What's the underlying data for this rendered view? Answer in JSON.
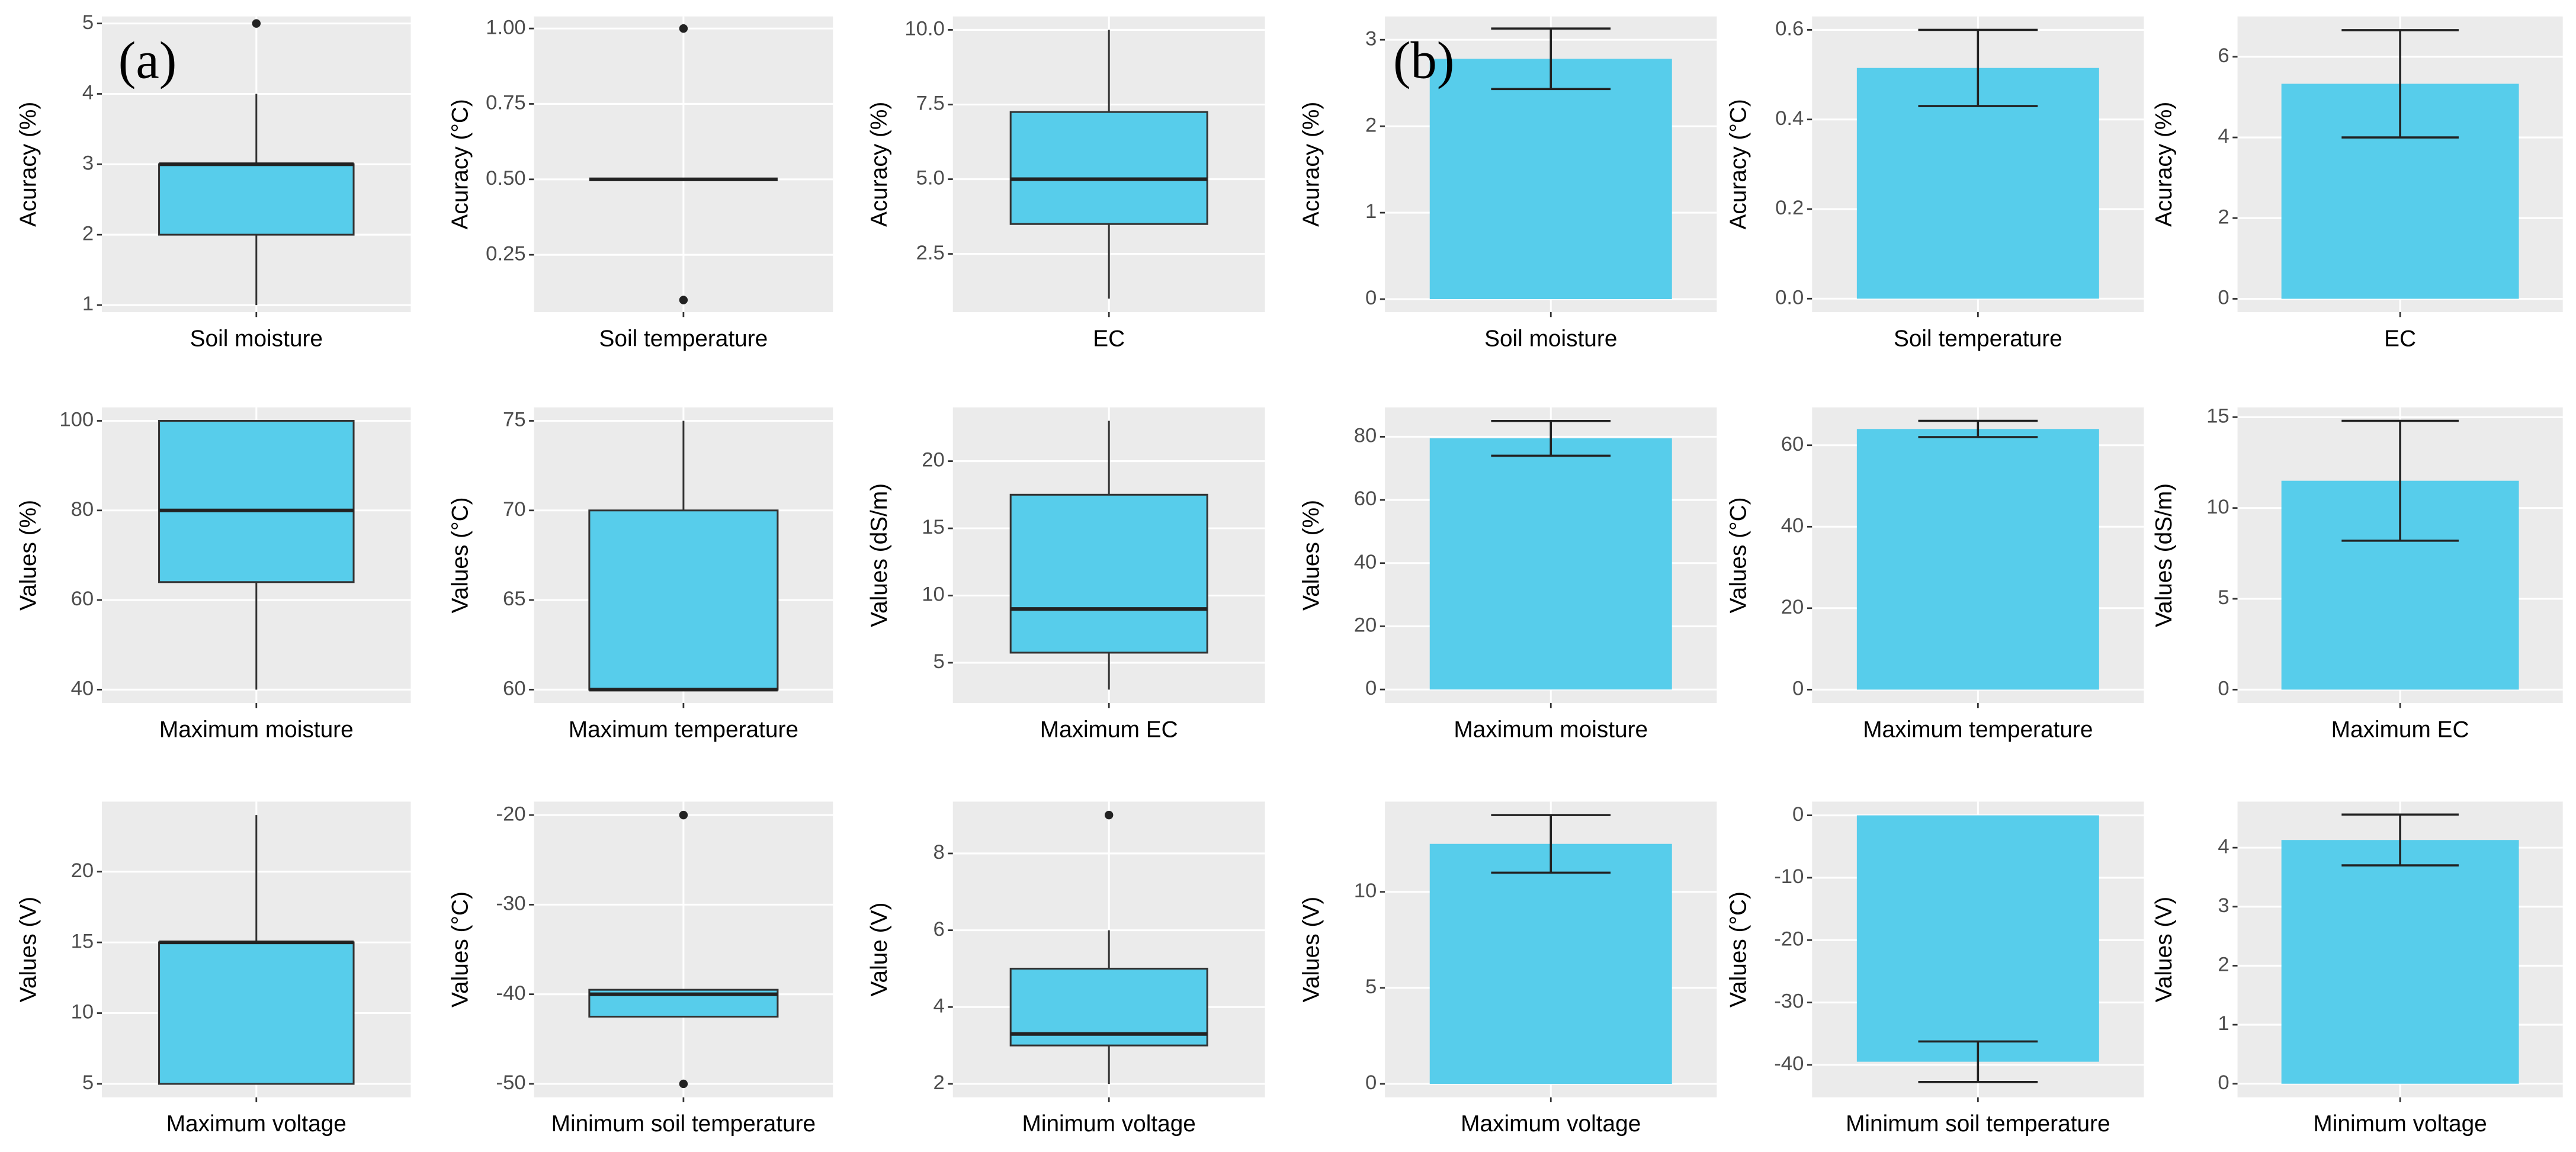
{
  "panel_labels": [
    "(a)",
    "(b)"
  ],
  "chart_data": [
    {
      "type": "box",
      "categories": [
        "Soil moisture"
      ],
      "ylabel": "Acuracy (%)",
      "color": "#57cdeb",
      "boxes": [
        {
          "min": 1,
          "q1": 2,
          "median": 3,
          "q3": 3,
          "max": 4,
          "outliers": [
            5
          ]
        }
      ],
      "ylim": [
        0.9,
        5.1
      ],
      "yticks": [
        1,
        2,
        3,
        4,
        5
      ]
    },
    {
      "type": "box",
      "categories": [
        "Soil temperature"
      ],
      "ylabel": "Acuracy (°C)",
      "color": "#57cdeb",
      "boxes": [
        {
          "min": 0.5,
          "q1": 0.5,
          "median": 0.5,
          "q3": 0.5,
          "max": 0.5,
          "outliers": [
            0.1,
            1
          ]
        }
      ],
      "ylim": [
        0.06,
        1.04
      ],
      "yticks": [
        {
          "value": 0.25,
          "label": "0.25"
        },
        {
          "value": 0.5,
          "label": "0.50"
        },
        {
          "value": 0.75,
          "label": "0.75"
        },
        {
          "value": 1,
          "label": "1.00"
        }
      ]
    },
    {
      "type": "box",
      "categories": [
        "EC"
      ],
      "ylabel": "Acuracy (%)",
      "color": "#57cdeb",
      "boxes": [
        {
          "min": 1,
          "q1": 3.5,
          "median": 5,
          "q3": 7.25,
          "max": 10,
          "outliers": []
        }
      ],
      "ylim": [
        0.55,
        10.45
      ],
      "yticks": [
        2.5,
        {
          "value": 5,
          "label": "5.0"
        },
        7.5,
        {
          "value": 10,
          "label": "10.0"
        }
      ]
    },
    {
      "type": "bar",
      "categories": [
        "Soil moisture"
      ],
      "ylabel": "Acuracy (%)",
      "color": "#57cdeb",
      "values": [
        2.78
      ],
      "errors": [
        0.35
      ],
      "ylim": [
        -0.15,
        3.27
      ],
      "yticks": [
        0,
        1,
        2,
        3
      ]
    },
    {
      "type": "bar",
      "categories": [
        "Soil temperature"
      ],
      "ylabel": "Acuracy (°C)",
      "color": "#57cdeb",
      "values": [
        0.515
      ],
      "errors": [
        0.085
      ],
      "ylim": [
        -0.03,
        0.63
      ],
      "yticks": [
        {
          "value": 0,
          "label": "0.0"
        },
        0.2,
        0.4,
        0.6
      ]
    },
    {
      "type": "bar",
      "categories": [
        "EC"
      ],
      "ylabel": "Acuracy (%)",
      "color": "#57cdeb",
      "values": [
        5.33
      ],
      "errors": [
        1.33
      ],
      "ylim": [
        -0.33,
        7.0
      ],
      "yticks": [
        0,
        2,
        4,
        6
      ]
    },
    {
      "type": "box",
      "categories": [
        "Maximum moisture"
      ],
      "ylabel": "Values (%)",
      "color": "#57cdeb",
      "boxes": [
        {
          "min": 40,
          "q1": 64,
          "median": 80,
          "q3": 100,
          "max": 100,
          "outliers": []
        }
      ],
      "ylim": [
        37,
        103
      ],
      "yticks": [
        40,
        60,
        80,
        100
      ]
    },
    {
      "type": "box",
      "categories": [
        "Maximum temperature"
      ],
      "ylabel": "Values (°C)",
      "color": "#57cdeb",
      "boxes": [
        {
          "min": 60,
          "q1": 60,
          "median": 60,
          "q3": 70,
          "max": 75,
          "outliers": []
        }
      ],
      "ylim": [
        59.25,
        75.75
      ],
      "yticks": [
        60,
        65,
        70,
        75
      ]
    },
    {
      "type": "box",
      "categories": [
        "Maximum EC"
      ],
      "ylabel": "Values (dS/m)",
      "color": "#57cdeb",
      "boxes": [
        {
          "min": 3,
          "q1": 5.75,
          "median": 9,
          "q3": 17.5,
          "max": 23,
          "outliers": []
        }
      ],
      "ylim": [
        2,
        24
      ],
      "yticks": [
        5,
        10,
        15,
        20
      ]
    },
    {
      "type": "bar",
      "categories": [
        "Maximum moisture"
      ],
      "ylabel": "Values (%)",
      "color": "#57cdeb",
      "values": [
        79.5
      ],
      "errors": [
        5.5
      ],
      "ylim": [
        -4.3,
        89.3
      ],
      "yticks": [
        0,
        20,
        40,
        60,
        80
      ]
    },
    {
      "type": "bar",
      "categories": [
        "Maximum temperature"
      ],
      "ylabel": "Values (°C)",
      "color": "#57cdeb",
      "values": [
        64
      ],
      "errors": [
        2
      ],
      "ylim": [
        -3.3,
        69.3
      ],
      "yticks": [
        0,
        20,
        40,
        60
      ]
    },
    {
      "type": "bar",
      "categories": [
        "Maximum EC"
      ],
      "ylabel": "Values (dS/m)",
      "color": "#57cdeb",
      "values": [
        11.5
      ],
      "errors": [
        3.3
      ],
      "ylim": [
        -0.74,
        15.54
      ],
      "yticks": [
        0,
        5,
        10,
        15
      ]
    },
    {
      "type": "box",
      "categories": [
        "Maximum voltage"
      ],
      "ylabel": "Values (V)",
      "color": "#57cdeb",
      "boxes": [
        {
          "min": 5,
          "q1": 5,
          "median": 15,
          "q3": 15,
          "max": 24,
          "outliers": []
        }
      ],
      "ylim": [
        4.05,
        24.95
      ],
      "yticks": [
        5,
        10,
        15,
        20
      ]
    },
    {
      "type": "box",
      "categories": [
        "Minimum soil temperature"
      ],
      "ylabel": "Values (°C)",
      "color": "#57cdeb",
      "boxes": [
        {
          "min": -42.5,
          "q1": -42.5,
          "median": -40,
          "q3": -39.5,
          "max": -39.5,
          "outliers": [
            -20,
            -50
          ]
        }
      ],
      "ylim": [
        -51.5,
        -18.5
      ],
      "yticks": [
        -50,
        -40,
        -30,
        -20
      ]
    },
    {
      "type": "box",
      "categories": [
        "Minimum voltage"
      ],
      "ylabel": "Value (V)",
      "color": "#57cdeb",
      "boxes": [
        {
          "min": 2,
          "q1": 3,
          "median": 3.3,
          "q3": 5,
          "max": 6,
          "outliers": [
            9
          ]
        }
      ],
      "ylim": [
        1.65,
        9.35
      ],
      "yticks": [
        2,
        4,
        6,
        8
      ]
    },
    {
      "type": "bar",
      "categories": [
        "Maximum voltage"
      ],
      "ylabel": "Values (V)",
      "color": "#57cdeb",
      "values": [
        12.5
      ],
      "errors": [
        1.5
      ],
      "ylim": [
        -0.7,
        14.7
      ],
      "yticks": [
        0,
        5,
        10
      ]
    },
    {
      "type": "bar",
      "categories": [
        "Minimum soil temperature"
      ],
      "ylabel": "Values (°C)",
      "color": "#57cdeb",
      "values": [
        -39.5
      ],
      "errors": [
        3.25
      ],
      "ylim": [
        -45.2,
        2.2
      ],
      "yticks": [
        -40,
        -30,
        -20,
        -10,
        0
      ]
    },
    {
      "type": "bar",
      "categories": [
        "Minimum voltage"
      ],
      "ylabel": "Values (V)",
      "color": "#57cdeb",
      "values": [
        4.13
      ],
      "errors": [
        0.43
      ],
      "ylim": [
        -0.23,
        4.78
      ],
      "yticks": [
        0,
        1,
        2,
        3,
        4
      ]
    }
  ]
}
